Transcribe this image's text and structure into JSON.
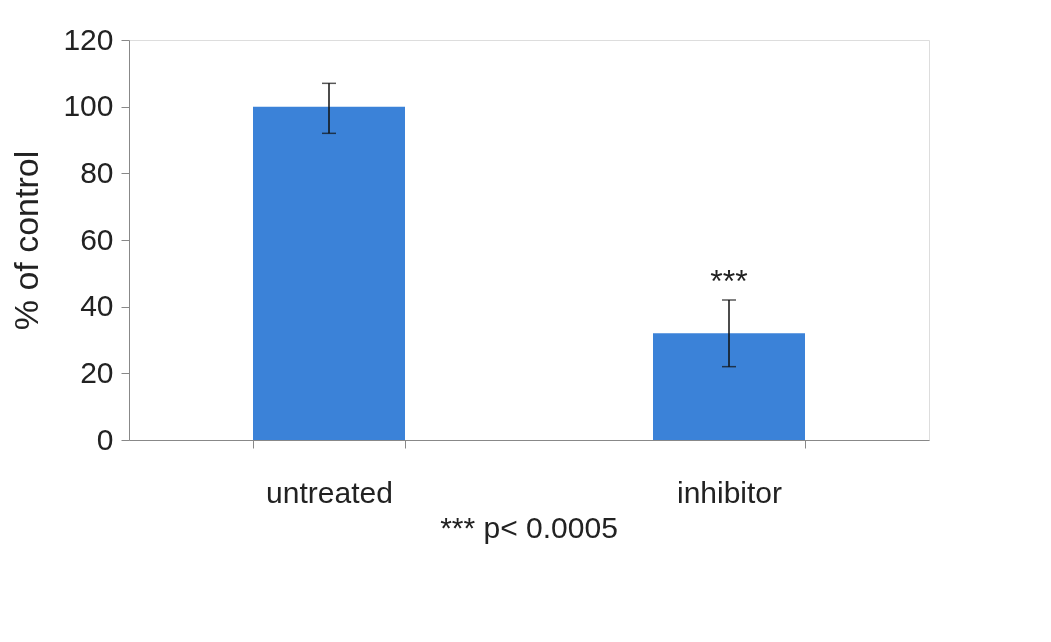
{
  "chart_data": {
    "type": "bar",
    "ylabel": "% of control",
    "categories": [
      "untreated",
      "inhibitor"
    ],
    "values": [
      100,
      32
    ],
    "errors": [
      [
        92,
        107
      ],
      [
        22,
        42
      ]
    ],
    "color": "#3b82d8",
    "ylim": [
      0,
      120
    ],
    "yticks": [
      0,
      20,
      40,
      60,
      80,
      100,
      120
    ],
    "grid": false,
    "annotations": [
      {
        "text": "***",
        "x": "inhibitor",
        "y": 42
      },
      "*** p< 0.0005"
    ]
  }
}
